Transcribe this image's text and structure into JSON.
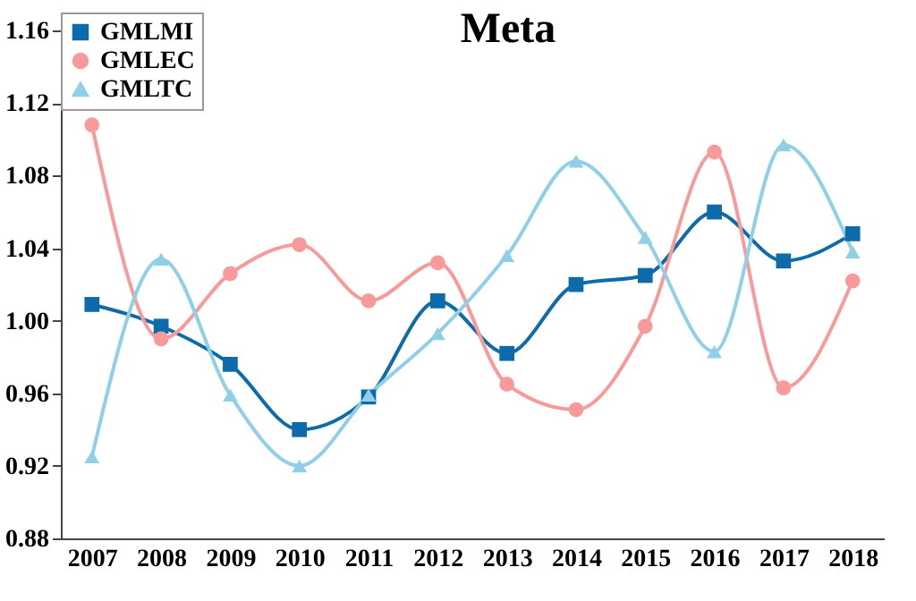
{
  "chart_data": {
    "type": "line",
    "title": "Meta",
    "categories": [
      "2007",
      "2008",
      "2009",
      "2010",
      "2011",
      "2012",
      "2013",
      "2014",
      "2015",
      "2016",
      "2017",
      "2018"
    ],
    "series": [
      {
        "name": "GMLMI",
        "color": "#0e6bab",
        "marker": "square",
        "values": [
          1.009,
          0.997,
          0.976,
          0.94,
          0.958,
          1.011,
          0.982,
          1.02,
          1.025,
          1.06,
          1.033,
          1.048
        ]
      },
      {
        "name": "GMLEC",
        "color": "#f99a9a",
        "marker": "circle",
        "values": [
          1.108,
          0.99,
          1.026,
          1.042,
          1.011,
          1.032,
          0.965,
          0.951,
          0.997,
          1.093,
          0.963,
          1.022
        ]
      },
      {
        "name": "GMLTC",
        "color": "#8fd0e8",
        "marker": "triangle",
        "values": [
          0.925,
          1.034,
          0.959,
          0.92,
          0.959,
          0.993,
          1.036,
          1.088,
          1.046,
          0.983,
          1.097,
          1.038
        ]
      }
    ],
    "ylim": [
      0.88,
      1.17
    ],
    "yticks": [
      0.88,
      0.92,
      0.96,
      {
        "value": 1,
        "label": "1.00"
      },
      1.04,
      1.08,
      1.12,
      1.16
    ],
    "legend": "top left",
    "grid": false,
    "line_style": "solid"
  }
}
